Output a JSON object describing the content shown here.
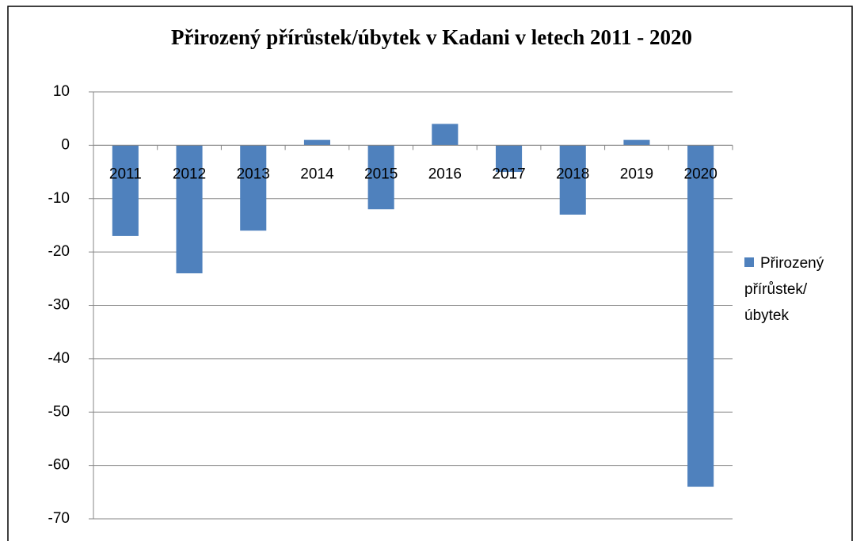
{
  "chart_data": {
    "type": "bar",
    "title": "Přirozený přírůstek/úbytek v Kadani v letech 2011 - 2020",
    "categories": [
      "2011",
      "2012",
      "2013",
      "2014",
      "2015",
      "2016",
      "2017",
      "2018",
      "2019",
      "2020"
    ],
    "series": [
      {
        "name": "Přirozený přírůstek/úbytek",
        "color": "#4f81bd",
        "values": [
          -17,
          -24,
          -16,
          1,
          -12,
          4,
          -5,
          -13,
          1,
          -64
        ]
      }
    ],
    "ylim": [
      -70,
      10
    ],
    "yticks": [
      -70,
      -60,
      -50,
      -40,
      -30,
      -20,
      -10,
      0,
      10
    ],
    "grid": true,
    "legend": "right"
  }
}
